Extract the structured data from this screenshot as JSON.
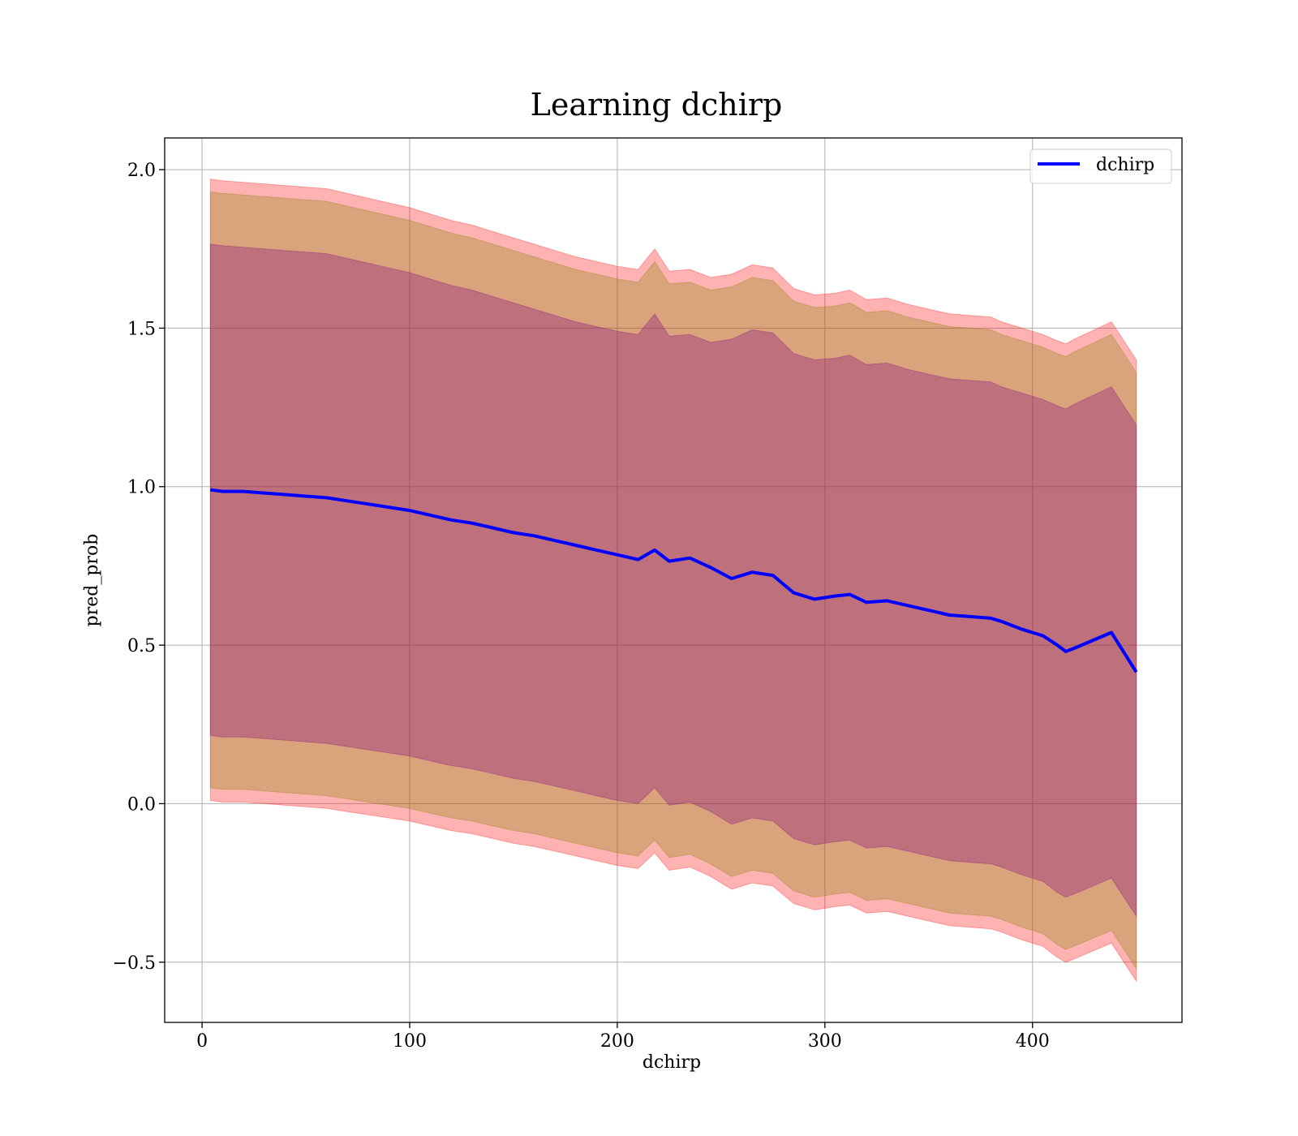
{
  "chart_data": {
    "type": "line",
    "title": "Learning dchirp",
    "xlabel": "dchirp",
    "ylabel": "pred_prob",
    "xlim": [
      -18,
      472
    ],
    "ylim": [
      -0.69,
      2.1
    ],
    "xticks": [
      0,
      100,
      200,
      300,
      400
    ],
    "xtick_labels": [
      "0",
      "100",
      "200",
      "300",
      "400"
    ],
    "yticks": [
      -0.5,
      0.0,
      0.5,
      1.0,
      1.5,
      2.0
    ],
    "ytick_labels": [
      "−0.5",
      "0.0",
      "0.5",
      "1.0",
      "1.5",
      "2.0"
    ],
    "grid": true,
    "legend_position": "upper right",
    "x": [
      4,
      10,
      20,
      30,
      40,
      50,
      60,
      70,
      80,
      90,
      100,
      110,
      120,
      130,
      140,
      150,
      160,
      170,
      180,
      190,
      200,
      210,
      218,
      225,
      235,
      245,
      255,
      265,
      275,
      285,
      295,
      305,
      312,
      320,
      330,
      340,
      350,
      360,
      370,
      380,
      385,
      395,
      405,
      412,
      416,
      420,
      438,
      450
    ],
    "series": [
      {
        "name": "dchirp",
        "color": "#0000ff",
        "values": [
          0.99,
          0.985,
          0.985,
          0.98,
          0.975,
          0.97,
          0.965,
          0.955,
          0.945,
          0.935,
          0.925,
          0.91,
          0.895,
          0.885,
          0.87,
          0.855,
          0.845,
          0.83,
          0.815,
          0.8,
          0.785,
          0.77,
          0.8,
          0.765,
          0.775,
          0.745,
          0.71,
          0.73,
          0.72,
          0.665,
          0.645,
          0.655,
          0.66,
          0.635,
          0.64,
          0.625,
          0.61,
          0.595,
          0.59,
          0.585,
          0.575,
          0.55,
          0.53,
          0.5,
          0.48,
          0.49,
          0.54,
          0.415
        ]
      }
    ],
    "bands": [
      {
        "color": "#ff0000",
        "opacity": 0.3,
        "upper": [
          1.97,
          1.965,
          1.96,
          1.955,
          1.95,
          1.945,
          1.94,
          1.925,
          1.91,
          1.895,
          1.88,
          1.86,
          1.84,
          1.825,
          1.805,
          1.785,
          1.765,
          1.745,
          1.725,
          1.71,
          1.695,
          1.685,
          1.75,
          1.68,
          1.685,
          1.66,
          1.67,
          1.7,
          1.69,
          1.625,
          1.605,
          1.61,
          1.62,
          1.59,
          1.595,
          1.575,
          1.56,
          1.545,
          1.54,
          1.535,
          1.52,
          1.5,
          1.48,
          1.46,
          1.45,
          1.465,
          1.52,
          1.4
        ],
        "lower": [
          0.01,
          0.005,
          0.005,
          0.0,
          -0.005,
          -0.01,
          -0.015,
          -0.025,
          -0.035,
          -0.045,
          -0.055,
          -0.07,
          -0.085,
          -0.095,
          -0.11,
          -0.125,
          -0.135,
          -0.15,
          -0.165,
          -0.18,
          -0.195,
          -0.205,
          -0.155,
          -0.21,
          -0.2,
          -0.23,
          -0.27,
          -0.25,
          -0.26,
          -0.315,
          -0.335,
          -0.325,
          -0.32,
          -0.345,
          -0.34,
          -0.355,
          -0.37,
          -0.385,
          -0.39,
          -0.395,
          -0.405,
          -0.43,
          -0.45,
          -0.485,
          -0.5,
          -0.49,
          -0.44,
          -0.56
        ]
      },
      {
        "color": "#808000",
        "opacity": 0.3,
        "upper": [
          1.93,
          1.925,
          1.92,
          1.915,
          1.91,
          1.905,
          1.9,
          1.885,
          1.87,
          1.855,
          1.84,
          1.82,
          1.8,
          1.785,
          1.765,
          1.745,
          1.725,
          1.705,
          1.685,
          1.67,
          1.655,
          1.645,
          1.71,
          1.64,
          1.645,
          1.62,
          1.63,
          1.66,
          1.65,
          1.585,
          1.565,
          1.57,
          1.58,
          1.55,
          1.555,
          1.535,
          1.52,
          1.505,
          1.5,
          1.495,
          1.48,
          1.46,
          1.44,
          1.42,
          1.41,
          1.425,
          1.48,
          1.36
        ],
        "lower": [
          0.05,
          0.045,
          0.045,
          0.04,
          0.035,
          0.03,
          0.025,
          0.015,
          0.005,
          -0.005,
          -0.015,
          -0.03,
          -0.045,
          -0.055,
          -0.07,
          -0.085,
          -0.095,
          -0.11,
          -0.125,
          -0.14,
          -0.155,
          -0.165,
          -0.115,
          -0.17,
          -0.16,
          -0.19,
          -0.23,
          -0.21,
          -0.22,
          -0.275,
          -0.295,
          -0.285,
          -0.28,
          -0.305,
          -0.3,
          -0.315,
          -0.33,
          -0.345,
          -0.35,
          -0.355,
          -0.365,
          -0.39,
          -0.41,
          -0.445,
          -0.46,
          -0.45,
          -0.4,
          -0.52
        ]
      },
      {
        "color": "#800080",
        "opacity": 0.3,
        "upper": [
          1.765,
          1.76,
          1.755,
          1.75,
          1.745,
          1.74,
          1.735,
          1.72,
          1.705,
          1.69,
          1.675,
          1.655,
          1.635,
          1.62,
          1.6,
          1.58,
          1.56,
          1.54,
          1.52,
          1.505,
          1.49,
          1.48,
          1.545,
          1.475,
          1.48,
          1.455,
          1.465,
          1.495,
          1.485,
          1.42,
          1.4,
          1.405,
          1.415,
          1.385,
          1.39,
          1.37,
          1.355,
          1.34,
          1.335,
          1.33,
          1.315,
          1.295,
          1.275,
          1.255,
          1.245,
          1.26,
          1.315,
          1.195
        ],
        "lower": [
          0.215,
          0.21,
          0.21,
          0.205,
          0.2,
          0.195,
          0.19,
          0.18,
          0.17,
          0.16,
          0.15,
          0.135,
          0.12,
          0.11,
          0.095,
          0.08,
          0.07,
          0.055,
          0.04,
          0.025,
          0.01,
          0.0,
          0.05,
          -0.005,
          0.005,
          -0.025,
          -0.065,
          -0.045,
          -0.055,
          -0.11,
          -0.13,
          -0.12,
          -0.115,
          -0.14,
          -0.135,
          -0.15,
          -0.165,
          -0.18,
          -0.185,
          -0.19,
          -0.2,
          -0.225,
          -0.245,
          -0.28,
          -0.295,
          -0.285,
          -0.235,
          -0.355
        ]
      }
    ]
  }
}
